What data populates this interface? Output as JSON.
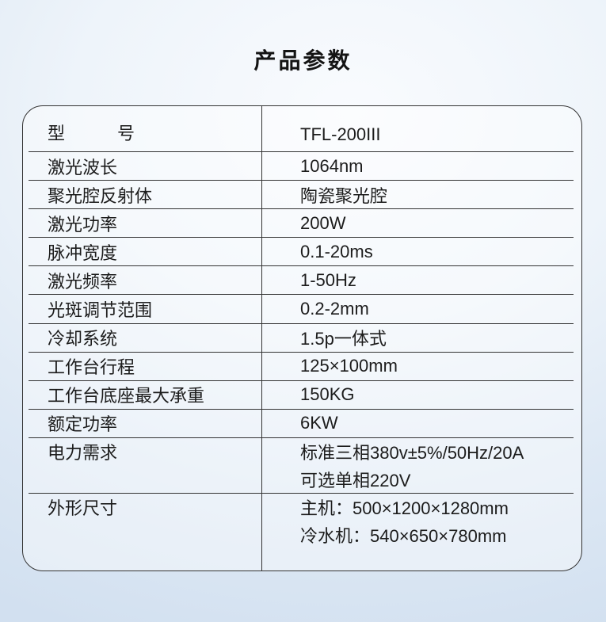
{
  "page": {
    "title": "产品参数"
  },
  "colors": {
    "line": "#333333",
    "text": "#1c1c1c",
    "background_top": "#f9fbfe",
    "background_edge": "#d2e0f0"
  },
  "table": {
    "rows": [
      {
        "label": "型　　　号",
        "value_lines": [
          "TFL-200III"
        ]
      },
      {
        "label": "激光波长",
        "value_lines": [
          "1064nm"
        ]
      },
      {
        "label": "聚光腔反射体",
        "value_lines": [
          "陶瓷聚光腔"
        ]
      },
      {
        "label": "激光功率",
        "value_lines": [
          "200W"
        ]
      },
      {
        "label": "脉冲宽度",
        "value_lines": [
          "0.1-20ms"
        ]
      },
      {
        "label": "激光频率",
        "value_lines": [
          "1-50Hz"
        ]
      },
      {
        "label": "光斑调节范围",
        "value_lines": [
          "0.2-2mm"
        ]
      },
      {
        "label": "冷却系统",
        "value_lines": [
          "1.5p一体式"
        ]
      },
      {
        "label": "工作台行程",
        "value_lines": [
          "125×100mm"
        ]
      },
      {
        "label": "工作台底座最大承重",
        "value_lines": [
          "150KG"
        ]
      },
      {
        "label": "额定功率",
        "value_lines": [
          "6KW"
        ]
      },
      {
        "label": "电力需求",
        "value_lines": [
          "标准三相380v±5%/50Hz/20A",
          "可选单相220V"
        ]
      },
      {
        "label": "外形尺寸",
        "value_lines": [
          "主机：500×1200×1280mm",
          "冷水机：540×650×780mm"
        ]
      }
    ]
  }
}
